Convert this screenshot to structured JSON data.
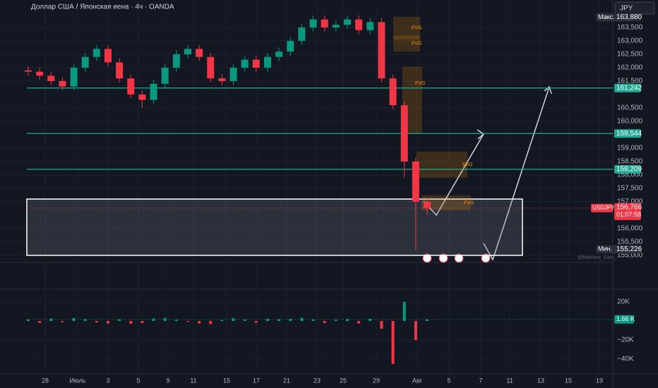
{
  "header": {
    "title": "Доллар США / Японская иена · 4ч · OANDA",
    "currency": "JPY",
    "watermark": "@Nephew_Sam_"
  },
  "chart_data": {
    "type": "candlestick",
    "open": [
      161.9,
      161.85,
      161.7,
      161.5,
      161.3,
      162.0,
      162.4,
      162.7,
      162.2,
      161.6,
      161.0,
      160.8,
      161.4,
      162.0,
      162.5,
      162.7,
      162.4,
      161.6,
      161.5,
      162.0,
      162.3,
      162.0,
      162.4,
      162.6,
      163.0,
      163.5,
      163.8,
      163.5,
      163.6,
      163.8,
      163.4,
      163.7,
      161.6,
      160.6,
      158.5,
      157.0
    ],
    "high": [
      162.05,
      162.0,
      161.85,
      161.65,
      162.15,
      162.55,
      162.85,
      162.85,
      162.35,
      161.75,
      161.15,
      161.55,
      162.15,
      162.65,
      162.85,
      162.85,
      162.55,
      161.75,
      162.15,
      162.45,
      162.45,
      162.55,
      162.75,
      163.15,
      163.65,
      163.95,
      163.95,
      163.75,
      163.95,
      163.95,
      163.85,
      163.85,
      161.75,
      160.75,
      158.65,
      157.15
    ],
    "low": [
      161.7,
      161.55,
      161.35,
      161.15,
      161.15,
      161.85,
      162.25,
      162.05,
      161.45,
      160.85,
      160.5,
      160.65,
      161.25,
      161.85,
      162.35,
      162.25,
      161.45,
      161.35,
      161.35,
      161.85,
      161.85,
      161.85,
      162.25,
      162.45,
      162.85,
      163.35,
      163.35,
      163.35,
      163.45,
      163.25,
      163.25,
      161.45,
      160.45,
      157.9,
      155.2,
      156.5
    ],
    "close": [
      161.85,
      161.7,
      161.5,
      161.3,
      162.0,
      162.4,
      162.7,
      162.2,
      161.6,
      161.0,
      160.8,
      161.4,
      162.0,
      162.5,
      162.7,
      162.4,
      161.6,
      161.5,
      162.0,
      162.3,
      162.0,
      162.4,
      162.6,
      163.0,
      163.5,
      163.8,
      163.5,
      163.6,
      163.8,
      163.4,
      163.7,
      161.6,
      160.6,
      158.5,
      157.0,
      156.766
    ],
    "ylim": [
      154.92,
      164.13
    ],
    "yticks": [
      {
        "value": 163.5,
        "label": "163,500"
      },
      {
        "value": 163,
        "label": "163,000"
      },
      {
        "value": 162.5,
        "label": "162,500"
      },
      {
        "value": 162,
        "label": "162,000"
      },
      {
        "value": 161.5,
        "label": "161,500"
      },
      {
        "value": 160.5,
        "label": "160,500"
      },
      {
        "value": 160,
        "label": "160,000"
      },
      {
        "value": 159,
        "label": "159,000"
      },
      {
        "value": 158.5,
        "label": "158,500"
      },
      {
        "value": 158,
        "label": "158,000"
      },
      {
        "value": 157.5,
        "label": "157,500"
      },
      {
        "value": 157,
        "label": "157,000"
      },
      {
        "value": 156,
        "label": "156,000"
      },
      {
        "value": 155.5,
        "label": "155,500"
      },
      {
        "value": 155,
        "label": "155,000"
      }
    ],
    "x_labels": [
      "28",
      "Июль",
      "3",
      "5",
      "9",
      "11",
      "15",
      "17",
      "21",
      "23",
      "25",
      "29",
      "Авг",
      "5",
      "7",
      "11",
      "13",
      "15",
      "19"
    ],
    "levels": [
      {
        "value": 161.242,
        "label": "161,242"
      },
      {
        "value": 159.544,
        "label": "159,544"
      },
      {
        "value": 158.209,
        "label": "158,209"
      }
    ],
    "range_box": [
      157.1,
      155.0
    ],
    "fvg_zones": [
      {
        "label": "FVG",
        "top": 163.9,
        "bottom": 163.05
      },
      {
        "label": "FVG",
        "top": 163.2,
        "bottom": 162.6
      },
      {
        "label": "FVG",
        "top": 162.04,
        "bottom": 159.54
      },
      {
        "label": "FVG",
        "top": 158.87,
        "bottom": 157.89
      },
      {
        "label": "FVG",
        "top": 157.24,
        "bottom": 156.68
      }
    ],
    "max_label": "Макс.",
    "max": {
      "value": 163.88,
      "label": "163,880"
    },
    "min_label": "Мин.",
    "min": {
      "value": 155.226,
      "label": "155,226"
    },
    "symbol": "USDJPY",
    "last": {
      "value": 156.766,
      "label": "156,766"
    },
    "countdown": "01:07:58",
    "delta": {
      "type": "bar",
      "values": [
        1500,
        -2000,
        2500,
        -1200,
        3000,
        2000,
        -1500,
        -2500,
        1800,
        -3000,
        -2200,
        2600,
        3100,
        1400,
        -900,
        -2700,
        -3200,
        1100,
        2900,
        1600,
        -1800,
        2400,
        1900,
        2200,
        3300,
        1700,
        -2100,
        1300,
        2000,
        -2600,
        2300,
        -8000,
        -45000,
        20000,
        -20000,
        1660
      ],
      "ylim": [
        -54000,
        29600
      ],
      "yticks": [
        {
          "value": 20000,
          "label": "20K"
        },
        {
          "value": -20000,
          "label": "−20K"
        },
        {
          "value": -40000,
          "label": "−40K"
        }
      ],
      "last": {
        "value": 1660,
        "label": "1,66 K"
      }
    }
  }
}
